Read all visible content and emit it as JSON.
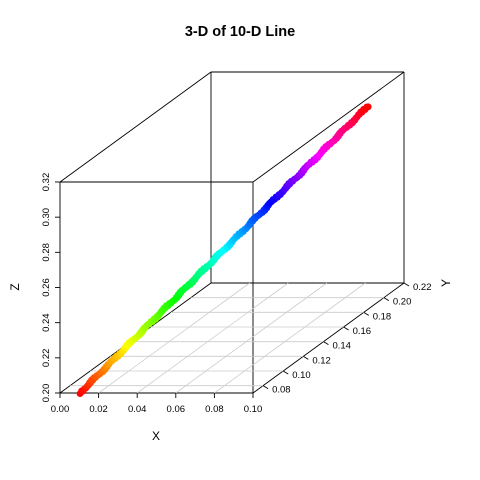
{
  "chart_data": {
    "type": "scatter",
    "title": "3-D of 10-D Line",
    "xlabel": "X",
    "ylabel": "Y",
    "zlabel": "Z",
    "xlim": [
      0.0,
      0.1
    ],
    "ylim": [
      0.07,
      0.22
    ],
    "zlim": [
      0.2,
      0.32
    ],
    "x_ticks": [
      "0.00",
      "0.02",
      "0.04",
      "0.06",
      "0.08",
      "0.10"
    ],
    "y_ticks": [
      "0.08",
      "0.10",
      "0.12",
      "0.14",
      "0.16",
      "0.18",
      "0.20",
      "0.22"
    ],
    "z_ticks": [
      "0.20",
      "0.22",
      "0.24",
      "0.26",
      "0.28",
      "0.30",
      "0.32"
    ],
    "x_tick_values": [
      0.0,
      0.02,
      0.04,
      0.06,
      0.08,
      0.1
    ],
    "y_tick_values": [
      0.08,
      0.1,
      0.12,
      0.14,
      0.16,
      0.18,
      0.2,
      0.22
    ],
    "z_tick_values": [
      0.2,
      0.22,
      0.24,
      0.26,
      0.28,
      0.3,
      0.32
    ],
    "floor_grid": true,
    "box": true,
    "color_scale": "rainbow (red → yellow → green → cyan → blue → magenta → red)",
    "series": [
      {
        "x": [
          0.0104,
          0.0199,
          0.0294,
          0.0389,
          0.0484,
          0.0579,
          0.0674,
          0.0768,
          0.0863,
          0.0958
        ],
        "y": [
          0.07,
          0.084,
          0.097,
          0.111,
          0.124,
          0.138,
          0.151,
          0.165,
          0.178,
          0.192
        ],
        "z": [
          0.2001,
          0.2125,
          0.225,
          0.2374,
          0.2499,
          0.2623,
          0.2748,
          0.2872,
          0.2997,
          0.3121
        ]
      }
    ],
    "point_count": 240
  }
}
